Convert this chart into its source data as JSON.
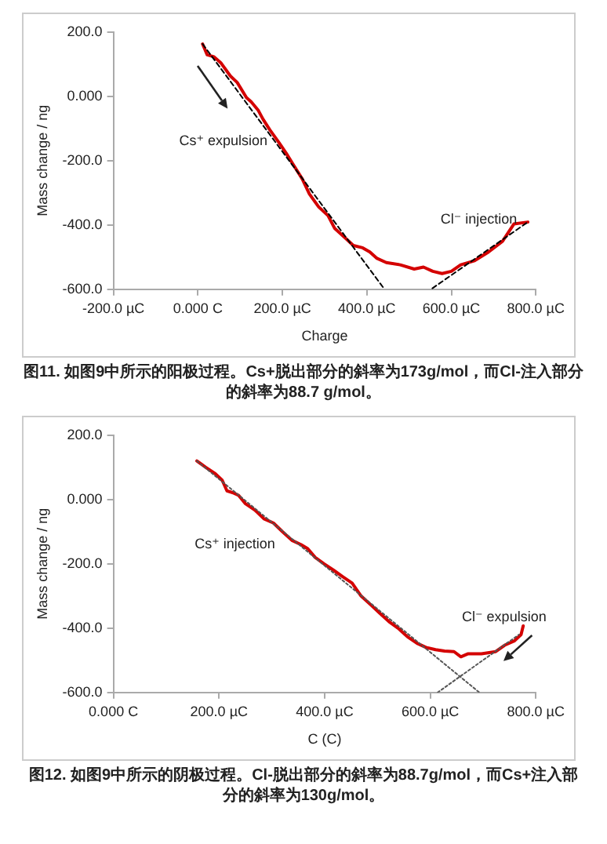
{
  "chart_data": [
    {
      "type": "line",
      "xlabel": "Charge",
      "ylabel": "Mass change / ng",
      "xlim": [
        -200,
        800
      ],
      "ylim": [
        -600,
        200
      ],
      "xticks": [
        {
          "value": -200,
          "label": "-200.0 µC"
        },
        {
          "value": 0,
          "label": "0.000 C"
        },
        {
          "value": 200,
          "label": "200.0 µC"
        },
        {
          "value": 400,
          "label": "400.0 µC"
        },
        {
          "value": 600,
          "label": "600.0 µC"
        },
        {
          "value": 800,
          "label": "800.0 µC"
        }
      ],
      "yticks": [
        {
          "value": 200,
          "label": "200.0"
        },
        {
          "value": 0,
          "label": "0.000"
        },
        {
          "value": -200,
          "label": "-200.0"
        },
        {
          "value": -400,
          "label": "-400.0"
        },
        {
          "value": -600,
          "label": "-600.0"
        }
      ],
      "legend": false,
      "series": [
        {
          "type": "line",
          "color": "#d40000",
          "line_style": "solid",
          "x": [
            11,
            22,
            38,
            55,
            77,
            93,
            115,
            126,
            143,
            154,
            170,
            192,
            209,
            225,
            247,
            264,
            286,
            308,
            324,
            346,
            368,
            390,
            407,
            424,
            446,
            479,
            512,
            534,
            556,
            578,
            600,
            622,
            655,
            688,
            721,
            748,
            781
          ],
          "values": [
            163,
            129,
            123,
            103,
            63,
            43,
            -4,
            -17,
            -44,
            -71,
            -104,
            -144,
            -177,
            -211,
            -257,
            -304,
            -344,
            -371,
            -411,
            -437,
            -464,
            -471,
            -484,
            -504,
            -517,
            -524,
            -537,
            -531,
            -544,
            -551,
            -544,
            -524,
            -511,
            -484,
            -451,
            -397,
            -391
          ]
        },
        {
          "type": "line",
          "color": "#000000",
          "line_style": "dashed",
          "x": [
            11,
            440
          ],
          "values": [
            163,
            -597
          ]
        },
        {
          "type": "line",
          "color": "#000000",
          "line_style": "dashed",
          "x": [
            555,
            781
          ],
          "values": [
            -597,
            -391
          ]
        }
      ],
      "annotations": [
        "Cs⁺ expulsion",
        "Cl⁻ injection",
        "图11. 如图9中所示的阳极过程。Cs+脱出部分的斜率为173g/mol，而Cl-注入部分的斜率为88.7 g/mol。"
      ]
    },
    {
      "type": "line",
      "xlabel": "C (C)",
      "ylabel": "Mass change / ng",
      "xlim": [
        0,
        800
      ],
      "ylim": [
        -600,
        200
      ],
      "xticks": [
        {
          "value": 0,
          "label": "0.000 C"
        },
        {
          "value": 200,
          "label": "200.0 µC"
        },
        {
          "value": 400,
          "label": "400.0 µC"
        },
        {
          "value": 600,
          "label": "600.0 µC"
        },
        {
          "value": 800,
          "label": "800.0 µC"
        }
      ],
      "yticks": [
        {
          "value": 200,
          "label": "200.0"
        },
        {
          "value": 0,
          "label": "0.000"
        },
        {
          "value": -200,
          "label": "-200.0"
        },
        {
          "value": -400,
          "label": "-400.0"
        },
        {
          "value": -600,
          "label": "-600.0"
        }
      ],
      "legend": false,
      "series": [
        {
          "type": "line",
          "color": "#d40000",
          "line_style": "solid",
          "x": [
            158,
            175,
            193,
            206,
            215,
            228,
            237,
            250,
            268,
            285,
            303,
            320,
            338,
            355,
            368,
            382,
            399,
            417,
            434,
            452,
            469,
            487,
            504,
            522,
            539,
            557,
            575,
            592,
            610,
            627,
            645,
            658,
            671,
            697,
            724,
            741,
            759,
            772,
            776
          ],
          "values": [
            120,
            100,
            80,
            60,
            27,
            20,
            13,
            -13,
            -33,
            -60,
            -73,
            -100,
            -127,
            -140,
            -153,
            -180,
            -200,
            -220,
            -240,
            -260,
            -300,
            -327,
            -353,
            -380,
            -400,
            -427,
            -447,
            -460,
            -467,
            -471,
            -473,
            -489,
            -480,
            -480,
            -473,
            -453,
            -440,
            -420,
            -393
          ]
        },
        {
          "type": "line",
          "color": "#555555",
          "line_style": "dotted",
          "x": [
            158,
            693
          ],
          "values": [
            120,
            -600
          ]
        },
        {
          "type": "line",
          "color": "#555555",
          "line_style": "dotted",
          "x": [
            614,
            768
          ],
          "values": [
            -600,
            -420
          ]
        }
      ],
      "annotations": [
        "Cs⁺ injection",
        "Cl⁻ expulsion",
        "图12. 如图9中所示的阴极过程。Cl-脱出部分的斜率为88.7g/mol，而Cs+注入部分的斜率为130g/mol。"
      ]
    }
  ]
}
